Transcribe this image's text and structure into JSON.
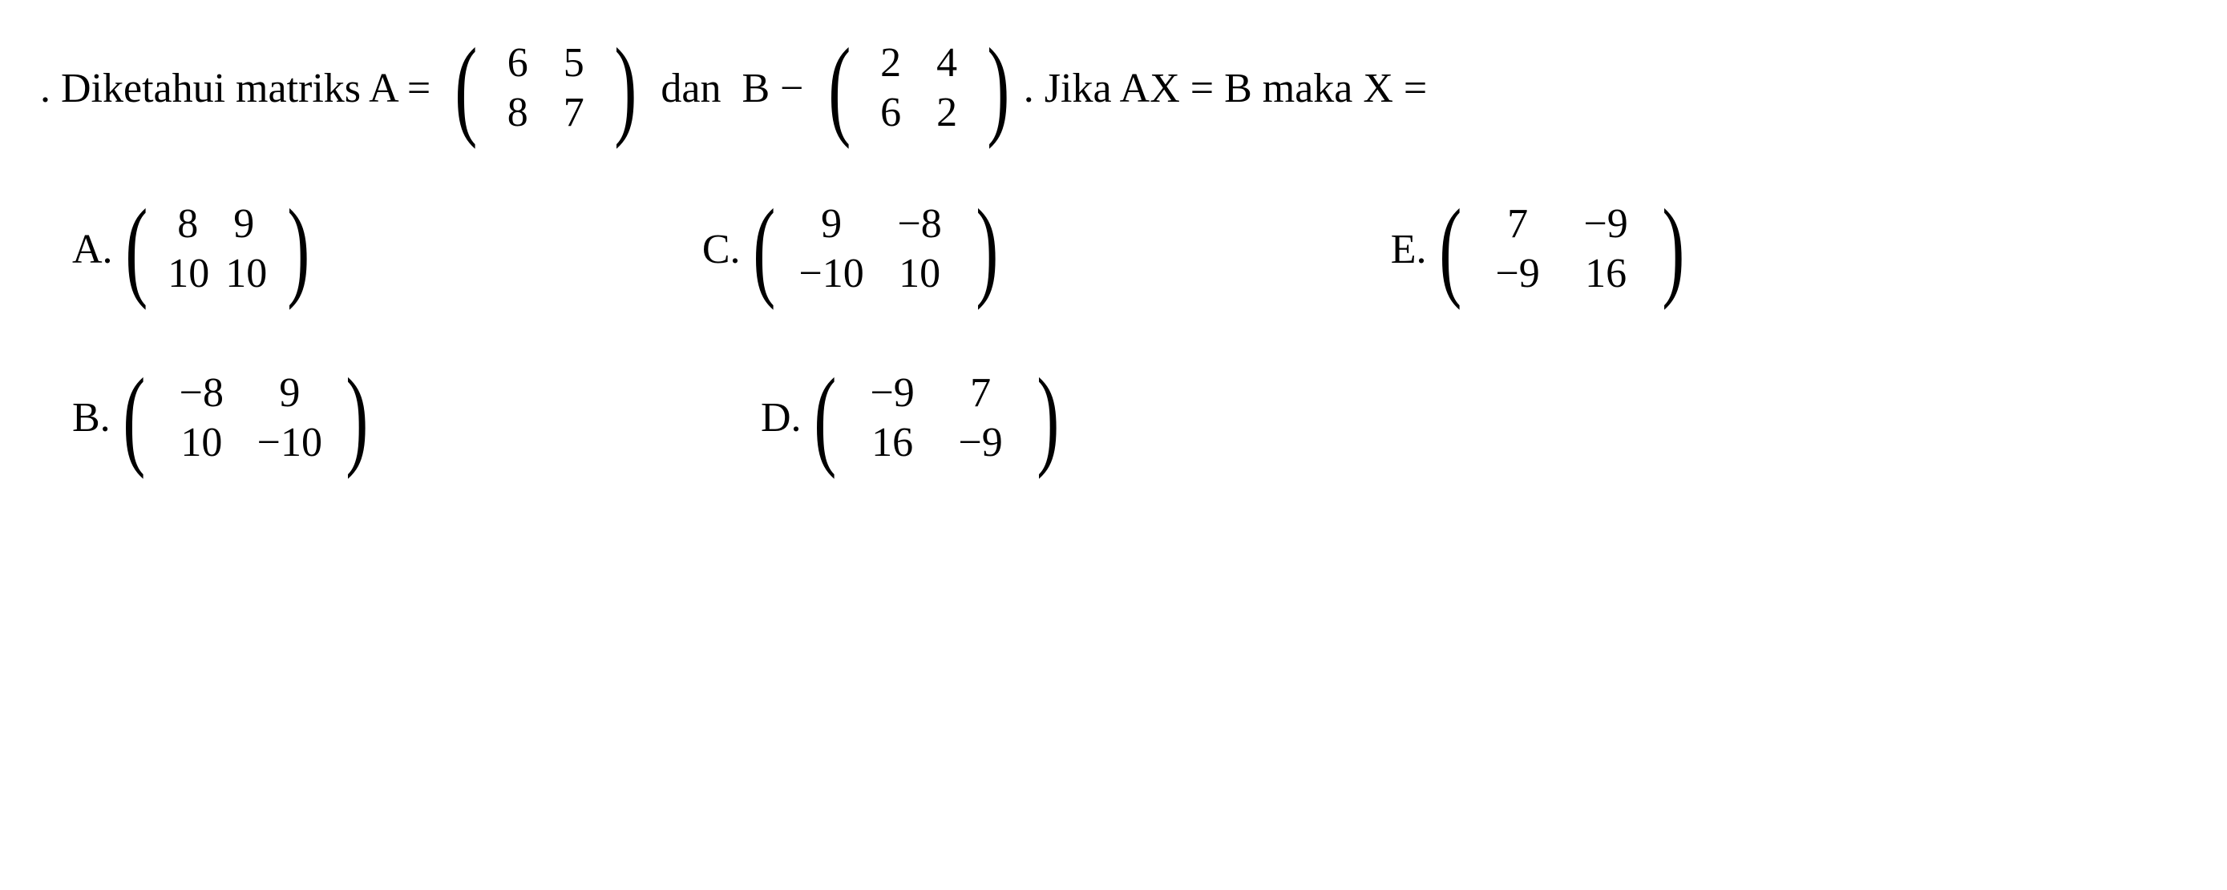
{
  "question": {
    "prefix": ". Diketahui matriks A = ",
    "matrixA": {
      "rows": [
        [
          "6",
          "5"
        ],
        [
          "8",
          "7"
        ]
      ]
    },
    "middle1": " dan  B − ",
    "matrixB": {
      "rows": [
        [
          "2",
          "4"
        ],
        [
          "6",
          "2"
        ]
      ]
    },
    "suffix": ". Jika AX = B maka X ="
  },
  "options": {
    "A": {
      "label": "A.",
      "matrix": {
        "rows": [
          [
            "8",
            "9"
          ],
          [
            "10",
            "10"
          ]
        ]
      }
    },
    "B": {
      "label": "B.",
      "matrix": {
        "rows": [
          [
            "−8",
            "9"
          ],
          [
            "10",
            "−10"
          ]
        ]
      }
    },
    "C": {
      "label": "C.",
      "matrix": {
        "rows": [
          [
            "9",
            "−8"
          ],
          [
            "−10",
            "10"
          ]
        ]
      }
    },
    "D": {
      "label": "D.",
      "matrix": {
        "rows": [
          [
            "−9",
            "7"
          ],
          [
            "16",
            "−9"
          ]
        ]
      }
    },
    "E": {
      "label": "E.",
      "matrix": {
        "rows": [
          [
            "7",
            "−9"
          ],
          [
            "−9",
            "16"
          ]
        ]
      }
    }
  },
  "styling": {
    "font_family": "Times New Roman",
    "font_size_pt": 39,
    "text_color": "#000000",
    "background_color": "#ffffff",
    "matrix_paren_scale": 2.7
  }
}
